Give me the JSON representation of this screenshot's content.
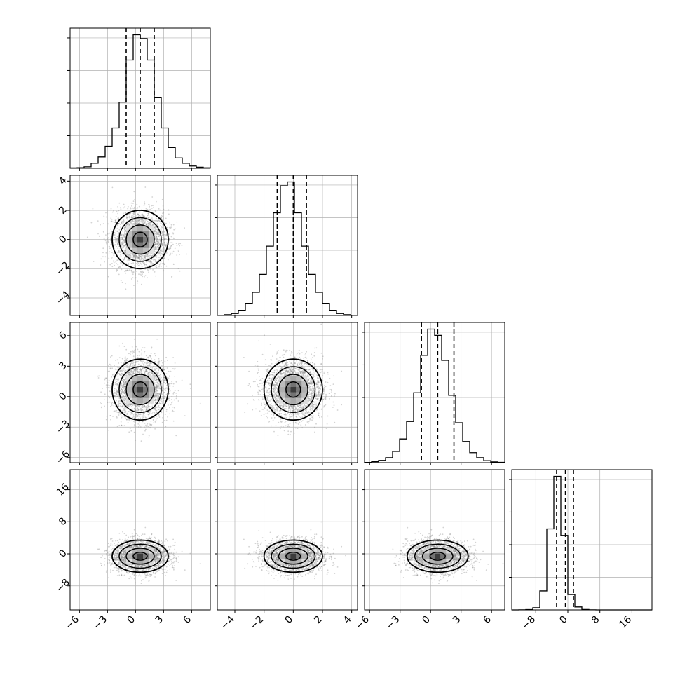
{
  "chart_data": {
    "type": "corner",
    "title": "",
    "n_params": 4,
    "colors": {
      "line": "#000000",
      "grid": "#b0b0b0",
      "points": "#808080",
      "background": "#ffffff"
    },
    "grid": true,
    "params": [
      {
        "name": "",
        "mean": 0.5,
        "sigma": 1.5,
        "range": [
          -7,
          8
        ],
        "quantiles": [
          -1.0,
          0.5,
          2.0
        ],
        "ticks": [
          -6,
          -3,
          0,
          3,
          6
        ],
        "tick_labels": [
          "−6",
          "−3",
          "0",
          "3",
          "6"
        ]
      },
      {
        "name": "",
        "mean": 0.0,
        "sigma": 1.0,
        "range": [
          -5.2,
          4.4
        ],
        "quantiles": [
          -1.1,
          0.0,
          0.9
        ],
        "ticks": [
          -4,
          -2,
          0,
          2,
          4
        ],
        "tick_labels": [
          "−4",
          "−2",
          "0",
          "2",
          "4"
        ]
      },
      {
        "name": "",
        "mean": 0.7,
        "sigma": 1.5,
        "range": [
          -6.5,
          7.3
        ],
        "quantiles": [
          -0.9,
          0.7,
          2.3
        ],
        "ticks": [
          -6,
          -3,
          0,
          3,
          6
        ],
        "tick_labels": [
          "−6",
          "−3",
          "0",
          "3",
          "6"
        ]
      },
      {
        "name": "",
        "mean": -0.6,
        "sigma": 2.0,
        "range": [
          -14,
          21
        ],
        "quantiles": [
          -2.8,
          -0.6,
          1.4
        ],
        "ticks": [
          -8,
          0,
          8,
          16
        ],
        "tick_labels": [
          "−8",
          "0",
          "8",
          "16"
        ]
      }
    ],
    "histograms": [
      {
        "param": 0,
        "bins": 20,
        "counts": [
          3,
          5,
          12,
          40,
          90,
          175,
          320,
          525,
          860,
          1060,
          1030,
          860,
          560,
          320,
          165,
          82,
          40,
          18,
          9,
          4
        ]
      },
      {
        "param": 1,
        "bins": 20,
        "counts": [
          2,
          6,
          15,
          40,
          95,
          180,
          320,
          540,
          800,
          1010,
          1040,
          800,
          540,
          320,
          180,
          95,
          40,
          15,
          6,
          2
        ]
      },
      {
        "param": 2,
        "bins": 20,
        "counts": [
          2,
          8,
          18,
          40,
          90,
          190,
          330,
          560,
          860,
          1070,
          1020,
          820,
          540,
          320,
          170,
          80,
          40,
          16,
          6,
          3
        ]
      },
      {
        "param": 3,
        "bins": 20,
        "counts": [
          0,
          1,
          4,
          30,
          260,
          1110,
          1830,
          1020,
          210,
          40,
          6,
          1,
          0,
          0,
          0,
          0,
          0,
          0,
          0,
          0
        ]
      }
    ],
    "contour_levels_sigma": [
      0.5,
      1.0,
      1.5,
      2.0
    ],
    "samples_per_panel": 2500
  }
}
